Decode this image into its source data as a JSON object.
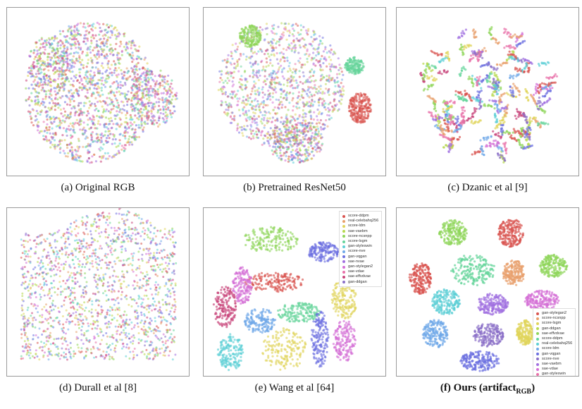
{
  "panels": [
    {
      "id": "a",
      "caption": "(a) Original RGB"
    },
    {
      "id": "b",
      "caption": "(b) Pretrained ResNet50"
    },
    {
      "id": "c",
      "caption": "(c) Dzanic et al [9]"
    },
    {
      "id": "d",
      "caption": "(d) Durall et al [8]"
    },
    {
      "id": "e",
      "caption": "(e) Wang et al [64]"
    },
    {
      "id": "f",
      "caption_main": "(f) Ours (artifact",
      "caption_sub": "RGB",
      "caption_end": ")"
    }
  ],
  "legend_e": [
    {
      "label": "score-ddpm",
      "color": "#d9534f"
    },
    {
      "label": "real-celebahq256",
      "color": "#e8a06c"
    },
    {
      "label": "score-ldm",
      "color": "#e0d45a"
    },
    {
      "label": "sae-vaebm",
      "color": "#b7d84f"
    },
    {
      "label": "score-ncsnpp",
      "color": "#8fd65a"
    },
    {
      "label": "score-lsgm",
      "color": "#64d49a"
    },
    {
      "label": "gan-styleswin",
      "color": "#5ccfd6"
    },
    {
      "label": "score-nve",
      "color": "#6fa8e8"
    },
    {
      "label": "gan-vqgan",
      "color": "#6b6fe0"
    },
    {
      "label": "sae-nvae",
      "color": "#a06fe0"
    },
    {
      "label": "gan-stylegan2",
      "color": "#d46fd6"
    },
    {
      "label": "sae-vdae",
      "color": "#e86fa8"
    },
    {
      "label": "sae-effvdvae",
      "color": "#c8447a"
    },
    {
      "label": "gan-ddgan",
      "color": "#8a6fc8"
    }
  ],
  "legend_f": [
    {
      "label": "gan-stylegan2",
      "color": "#d9534f"
    },
    {
      "label": "score-ncsnpp",
      "color": "#e8a06c"
    },
    {
      "label": "score-lsgm",
      "color": "#e0d45a"
    },
    {
      "label": "gan-ddgan",
      "color": "#b7d84f"
    },
    {
      "label": "sae-effvdvae",
      "color": "#8fd65a"
    },
    {
      "label": "score-ddpm",
      "color": "#64d49a"
    },
    {
      "label": "real-celebahq256",
      "color": "#5ccfd6"
    },
    {
      "label": "score-ldm",
      "color": "#6fa8e8"
    },
    {
      "label": "gan-vqgan",
      "color": "#6b6fe0"
    },
    {
      "label": "score-nve",
      "color": "#8a6fc8"
    },
    {
      "label": "sae-vaebm",
      "color": "#a06fe0"
    },
    {
      "label": "sae-vdae",
      "color": "#d46fd6"
    },
    {
      "label": "gan-styleswin",
      "color": "#e86fa8"
    },
    {
      "label": "sae-nvae",
      "color": "#c8447a"
    }
  ]
}
